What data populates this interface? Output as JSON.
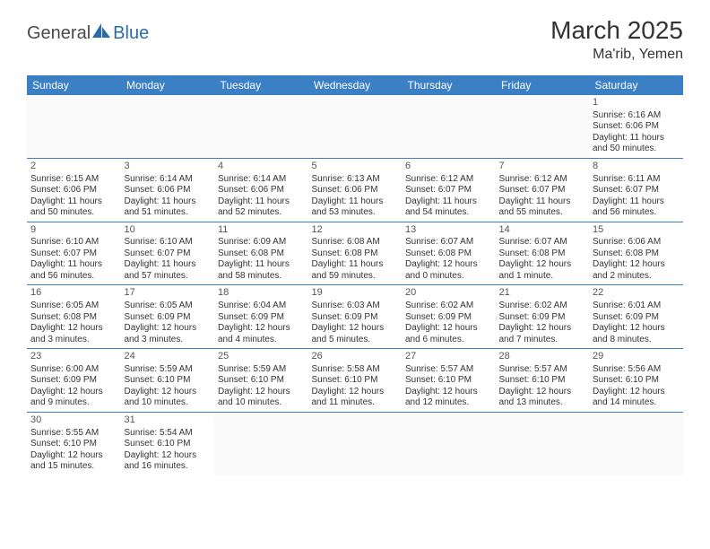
{
  "brand": {
    "part1": "General",
    "part2": "Blue"
  },
  "title": "March 2025",
  "location": "Ma'rib, Yemen",
  "colors": {
    "header_bg": "#3b7fc4",
    "header_text": "#ffffff",
    "border": "#3b7fc4",
    "brand_gray": "#4a4a4a",
    "brand_blue": "#2b6ca8",
    "text": "#333333"
  },
  "weekdays": [
    "Sunday",
    "Monday",
    "Tuesday",
    "Wednesday",
    "Thursday",
    "Friday",
    "Saturday"
  ],
  "weeks": [
    [
      null,
      null,
      null,
      null,
      null,
      null,
      {
        "n": "1",
        "sr": "Sunrise: 6:16 AM",
        "ss": "Sunset: 6:06 PM",
        "d1": "Daylight: 11 hours",
        "d2": "and 50 minutes."
      }
    ],
    [
      {
        "n": "2",
        "sr": "Sunrise: 6:15 AM",
        "ss": "Sunset: 6:06 PM",
        "d1": "Daylight: 11 hours",
        "d2": "and 50 minutes."
      },
      {
        "n": "3",
        "sr": "Sunrise: 6:14 AM",
        "ss": "Sunset: 6:06 PM",
        "d1": "Daylight: 11 hours",
        "d2": "and 51 minutes."
      },
      {
        "n": "4",
        "sr": "Sunrise: 6:14 AM",
        "ss": "Sunset: 6:06 PM",
        "d1": "Daylight: 11 hours",
        "d2": "and 52 minutes."
      },
      {
        "n": "5",
        "sr": "Sunrise: 6:13 AM",
        "ss": "Sunset: 6:06 PM",
        "d1": "Daylight: 11 hours",
        "d2": "and 53 minutes."
      },
      {
        "n": "6",
        "sr": "Sunrise: 6:12 AM",
        "ss": "Sunset: 6:07 PM",
        "d1": "Daylight: 11 hours",
        "d2": "and 54 minutes."
      },
      {
        "n": "7",
        "sr": "Sunrise: 6:12 AM",
        "ss": "Sunset: 6:07 PM",
        "d1": "Daylight: 11 hours",
        "d2": "and 55 minutes."
      },
      {
        "n": "8",
        "sr": "Sunrise: 6:11 AM",
        "ss": "Sunset: 6:07 PM",
        "d1": "Daylight: 11 hours",
        "d2": "and 56 minutes."
      }
    ],
    [
      {
        "n": "9",
        "sr": "Sunrise: 6:10 AM",
        "ss": "Sunset: 6:07 PM",
        "d1": "Daylight: 11 hours",
        "d2": "and 56 minutes."
      },
      {
        "n": "10",
        "sr": "Sunrise: 6:10 AM",
        "ss": "Sunset: 6:07 PM",
        "d1": "Daylight: 11 hours",
        "d2": "and 57 minutes."
      },
      {
        "n": "11",
        "sr": "Sunrise: 6:09 AM",
        "ss": "Sunset: 6:08 PM",
        "d1": "Daylight: 11 hours",
        "d2": "and 58 minutes."
      },
      {
        "n": "12",
        "sr": "Sunrise: 6:08 AM",
        "ss": "Sunset: 6:08 PM",
        "d1": "Daylight: 11 hours",
        "d2": "and 59 minutes."
      },
      {
        "n": "13",
        "sr": "Sunrise: 6:07 AM",
        "ss": "Sunset: 6:08 PM",
        "d1": "Daylight: 12 hours",
        "d2": "and 0 minutes."
      },
      {
        "n": "14",
        "sr": "Sunrise: 6:07 AM",
        "ss": "Sunset: 6:08 PM",
        "d1": "Daylight: 12 hours",
        "d2": "and 1 minute."
      },
      {
        "n": "15",
        "sr": "Sunrise: 6:06 AM",
        "ss": "Sunset: 6:08 PM",
        "d1": "Daylight: 12 hours",
        "d2": "and 2 minutes."
      }
    ],
    [
      {
        "n": "16",
        "sr": "Sunrise: 6:05 AM",
        "ss": "Sunset: 6:08 PM",
        "d1": "Daylight: 12 hours",
        "d2": "and 3 minutes."
      },
      {
        "n": "17",
        "sr": "Sunrise: 6:05 AM",
        "ss": "Sunset: 6:09 PM",
        "d1": "Daylight: 12 hours",
        "d2": "and 3 minutes."
      },
      {
        "n": "18",
        "sr": "Sunrise: 6:04 AM",
        "ss": "Sunset: 6:09 PM",
        "d1": "Daylight: 12 hours",
        "d2": "and 4 minutes."
      },
      {
        "n": "19",
        "sr": "Sunrise: 6:03 AM",
        "ss": "Sunset: 6:09 PM",
        "d1": "Daylight: 12 hours",
        "d2": "and 5 minutes."
      },
      {
        "n": "20",
        "sr": "Sunrise: 6:02 AM",
        "ss": "Sunset: 6:09 PM",
        "d1": "Daylight: 12 hours",
        "d2": "and 6 minutes."
      },
      {
        "n": "21",
        "sr": "Sunrise: 6:02 AM",
        "ss": "Sunset: 6:09 PM",
        "d1": "Daylight: 12 hours",
        "d2": "and 7 minutes."
      },
      {
        "n": "22",
        "sr": "Sunrise: 6:01 AM",
        "ss": "Sunset: 6:09 PM",
        "d1": "Daylight: 12 hours",
        "d2": "and 8 minutes."
      }
    ],
    [
      {
        "n": "23",
        "sr": "Sunrise: 6:00 AM",
        "ss": "Sunset: 6:09 PM",
        "d1": "Daylight: 12 hours",
        "d2": "and 9 minutes."
      },
      {
        "n": "24",
        "sr": "Sunrise: 5:59 AM",
        "ss": "Sunset: 6:10 PM",
        "d1": "Daylight: 12 hours",
        "d2": "and 10 minutes."
      },
      {
        "n": "25",
        "sr": "Sunrise: 5:59 AM",
        "ss": "Sunset: 6:10 PM",
        "d1": "Daylight: 12 hours",
        "d2": "and 10 minutes."
      },
      {
        "n": "26",
        "sr": "Sunrise: 5:58 AM",
        "ss": "Sunset: 6:10 PM",
        "d1": "Daylight: 12 hours",
        "d2": "and 11 minutes."
      },
      {
        "n": "27",
        "sr": "Sunrise: 5:57 AM",
        "ss": "Sunset: 6:10 PM",
        "d1": "Daylight: 12 hours",
        "d2": "and 12 minutes."
      },
      {
        "n": "28",
        "sr": "Sunrise: 5:57 AM",
        "ss": "Sunset: 6:10 PM",
        "d1": "Daylight: 12 hours",
        "d2": "and 13 minutes."
      },
      {
        "n": "29",
        "sr": "Sunrise: 5:56 AM",
        "ss": "Sunset: 6:10 PM",
        "d1": "Daylight: 12 hours",
        "d2": "and 14 minutes."
      }
    ],
    [
      {
        "n": "30",
        "sr": "Sunrise: 5:55 AM",
        "ss": "Sunset: 6:10 PM",
        "d1": "Daylight: 12 hours",
        "d2": "and 15 minutes."
      },
      {
        "n": "31",
        "sr": "Sunrise: 5:54 AM",
        "ss": "Sunset: 6:10 PM",
        "d1": "Daylight: 12 hours",
        "d2": "and 16 minutes."
      },
      null,
      null,
      null,
      null,
      null
    ]
  ]
}
